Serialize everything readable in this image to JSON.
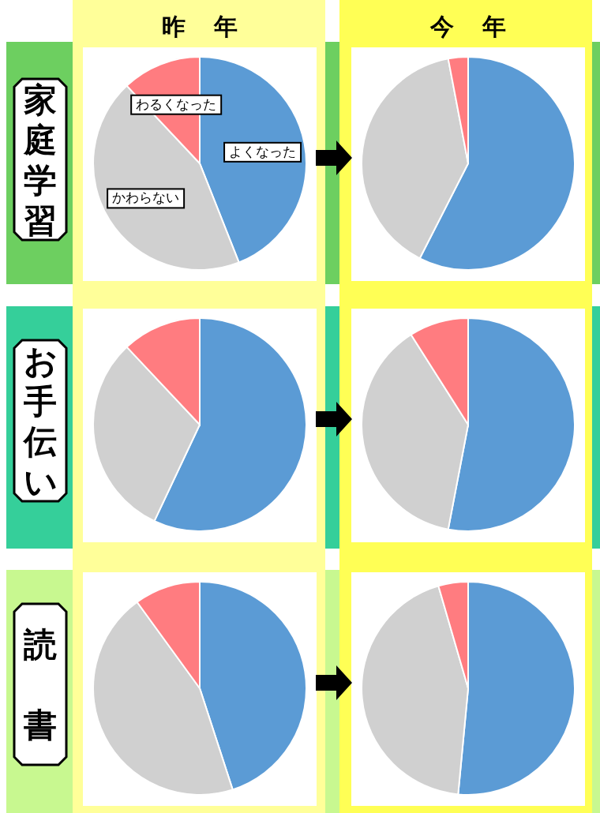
{
  "chart_data": [
    {
      "type": "pie",
      "title": "昨年",
      "ylabel": "家庭学習",
      "categories": [
        "よくなった",
        "かわらない",
        "わるくなった"
      ],
      "values": [
        44,
        44,
        12
      ],
      "colors": [
        "#5b9bd5",
        "#d0d0d0",
        "#ff7c80"
      ]
    },
    {
      "type": "pie",
      "title": "今年",
      "categories": [
        null,
        null,
        null
      ],
      "values": [
        57.5,
        39.5,
        3
      ],
      "colors": [
        "#5b9bd5",
        "#d0d0d0",
        "#ff7c80"
      ]
    },
    {
      "type": "pie",
      "ylabel": "お手伝い",
      "categories": [
        null,
        null,
        null
      ],
      "values": [
        57,
        31,
        12
      ],
      "colors": [
        "#5b9bd5",
        "#d0d0d0",
        "#ff7c80"
      ]
    },
    {
      "type": "pie",
      "categories": [
        null,
        null,
        null
      ],
      "values": [
        53,
        38,
        9
      ],
      "colors": [
        "#5b9bd5",
        "#d0d0d0",
        "#ff7c80"
      ]
    },
    {
      "type": "pie",
      "ylabel": "読書",
      "categories": [
        null,
        null,
        null
      ],
      "values": [
        45,
        45,
        10
      ],
      "colors": [
        "#5b9bd5",
        "#d0d0d0",
        "#ff7c80"
      ]
    },
    {
      "type": "pie",
      "categories": [
        null,
        null,
        null
      ],
      "values": [
        51.5,
        44,
        4.5
      ],
      "colors": [
        "#5b9bd5",
        "#d0d0d0",
        "#ff7c80"
      ]
    }
  ]
}
